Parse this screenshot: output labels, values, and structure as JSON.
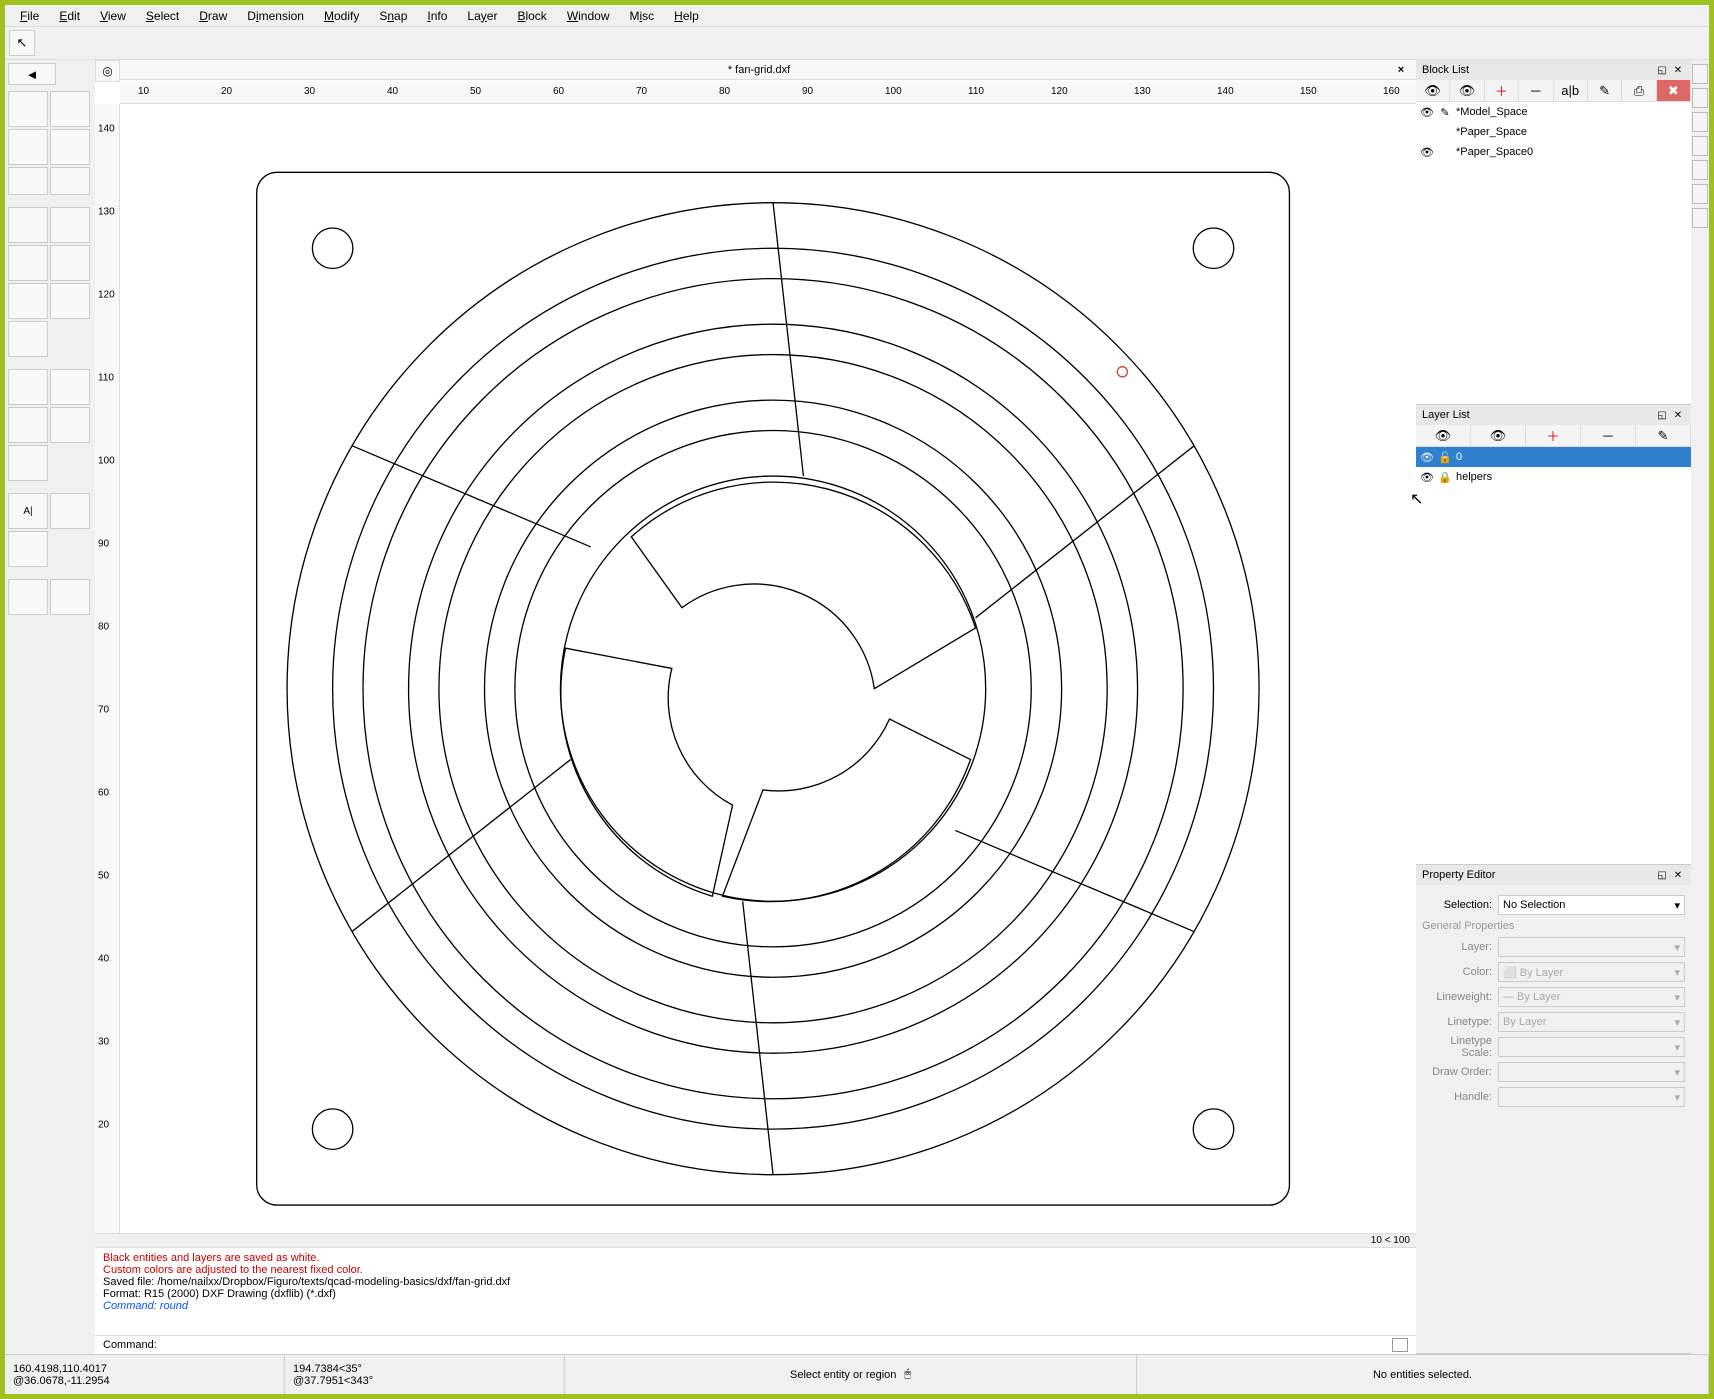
{
  "menubar": [
    "File",
    "Edit",
    "View",
    "Select",
    "Draw",
    "Dimension",
    "Modify",
    "Snap",
    "Info",
    "Layer",
    "Block",
    "Window",
    "Misc",
    "Help"
  ],
  "document": {
    "title": "* fan-grid.dxf",
    "close_glyph": "×"
  },
  "back_glyph": "◄",
  "ruler_top": {
    "ticks": [
      10,
      20,
      30,
      40,
      50,
      60,
      70,
      80,
      90,
      100,
      110,
      120,
      130,
      140,
      150,
      160
    ]
  },
  "ruler_left": {
    "ticks": [
      140,
      130,
      120,
      110,
      100,
      90,
      80,
      70,
      60,
      50,
      40,
      30,
      20
    ]
  },
  "zoom_text": "10 < 100",
  "blocklist": {
    "title": "Block List",
    "buttons": [
      "👁",
      "👁",
      "＋",
      "－",
      "a|b",
      "✎",
      "⎙",
      "✖"
    ],
    "items": [
      {
        "vis": "👁",
        "lock": "✎",
        "name": "*Model_Space"
      },
      {
        "vis": "",
        "lock": "",
        "name": "*Paper_Space"
      },
      {
        "vis": "👁",
        "lock": "",
        "name": "*Paper_Space0"
      }
    ]
  },
  "layerlist": {
    "title": "Layer List",
    "buttons": [
      "👁",
      "👁",
      "＋",
      "－",
      "✎"
    ],
    "items": [
      {
        "vis": "👁",
        "lock": "🔓",
        "name": "0",
        "selected": true
      },
      {
        "vis": "👁",
        "lock": "🔒",
        "name": "helpers",
        "selected": false
      }
    ]
  },
  "property": {
    "title": "Property Editor",
    "selection_label": "Selection:",
    "selection_value": "No Selection",
    "section": "General Properties",
    "rows": [
      {
        "label": "Layer:",
        "value": ""
      },
      {
        "label": "Color:",
        "value": "⬜ By Layer"
      },
      {
        "label": "Lineweight:",
        "value": "— By Layer"
      },
      {
        "label": "Linetype:",
        "value": "By Layer"
      },
      {
        "label": "Linetype Scale:",
        "value": ""
      },
      {
        "label": "Draw Order:",
        "value": ""
      },
      {
        "label": "Handle:",
        "value": ""
      }
    ]
  },
  "log": {
    "lines": [
      {
        "cls": "red",
        "text": "Black entities and layers are saved as white."
      },
      {
        "cls": "red",
        "text": "Custom colors are adjusted to the nearest fixed color."
      },
      {
        "cls": "",
        "text": "Saved file: /home/nailxx/Dropbox/Figuro/texts/qcad-modeling-basics/dxf/fan-grid.dxf"
      },
      {
        "cls": "",
        "text": "Format: R15 (2000) DXF Drawing (dxflib) (*.dxf)"
      },
      {
        "cls": "blue",
        "text": "Command: round"
      }
    ]
  },
  "cmd_label": "Command:",
  "status": {
    "abs": "160.4198,110.4017",
    "rel": "@36.0678,-11.2954",
    "polar": "194.7384<35°",
    "polar_rel": "@37.7951<343°",
    "hint": "Select entity or region",
    "sel": "No entities selected."
  }
}
